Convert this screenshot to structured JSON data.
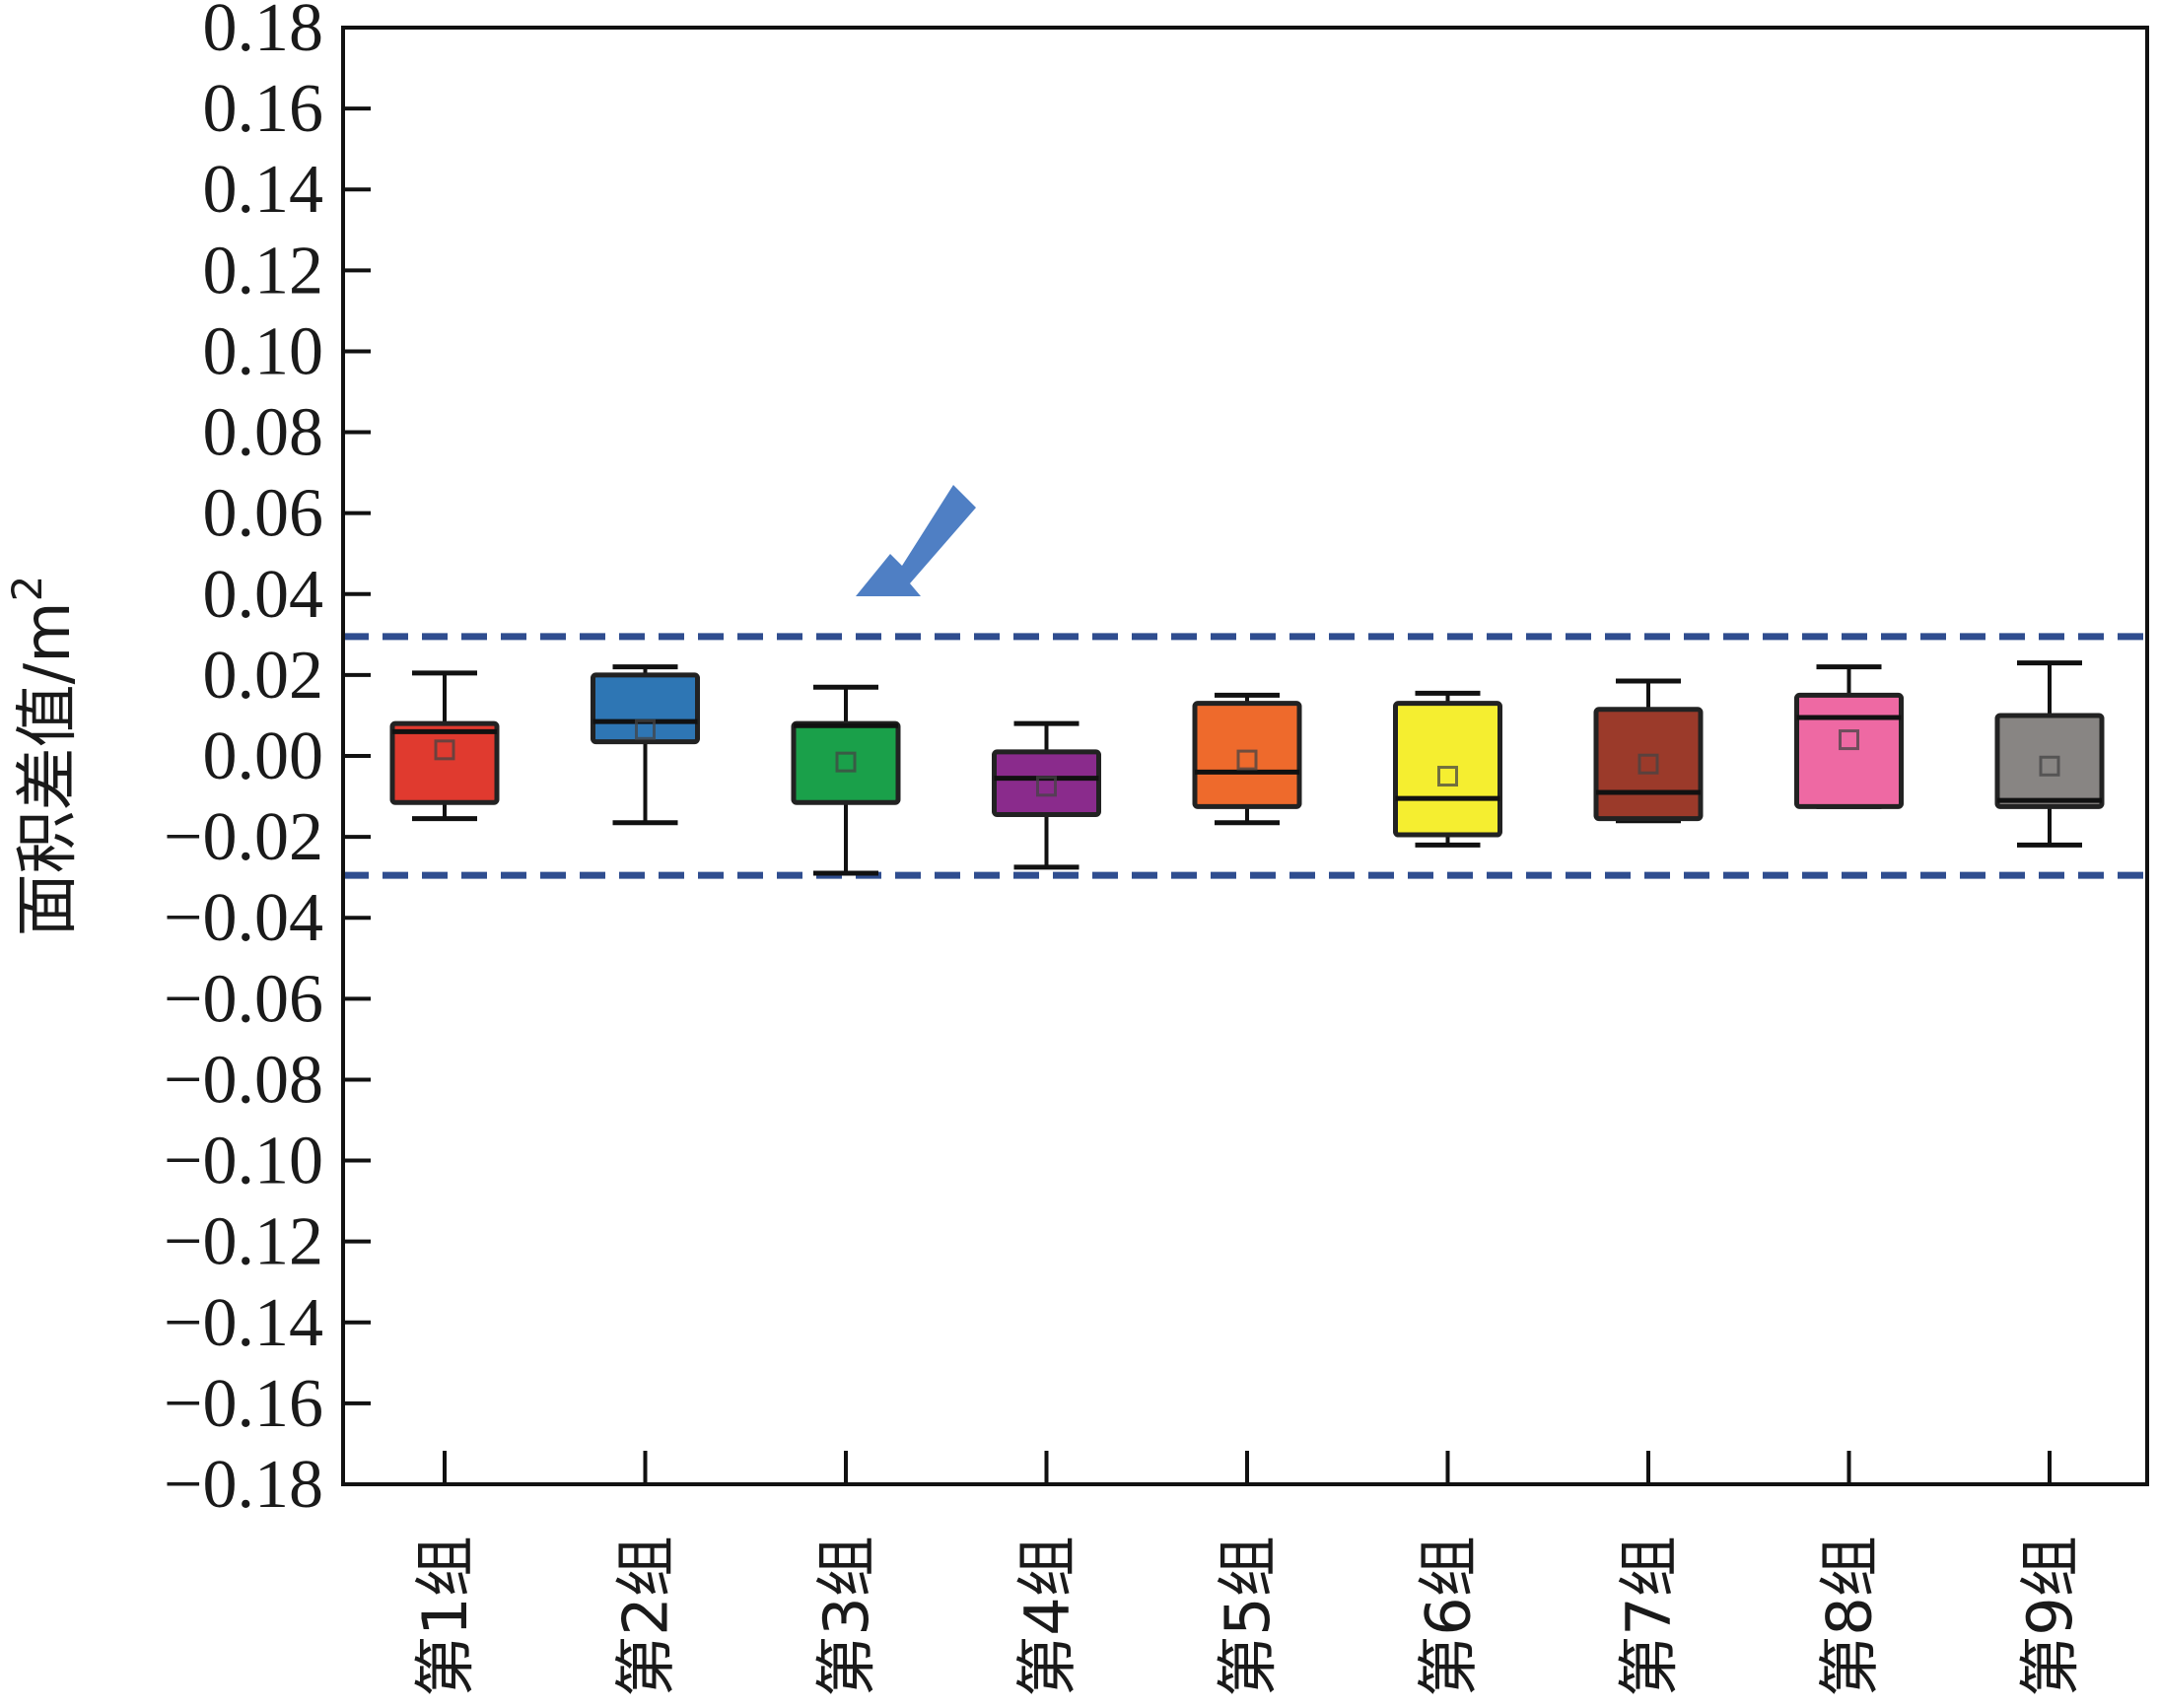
{
  "chart_data": {
    "type": "box",
    "ylabel": "面积差值/m",
    "ylabel_superscript": "2",
    "ylim": [
      -0.18,
      0.18
    ],
    "yticks": [
      "0.18",
      "0.16",
      "0.14",
      "0.12",
      "0.10",
      "0.08",
      "0.06",
      "0.04",
      "0.02",
      "0.00",
      "−0.02",
      "−0.04",
      "−0.06",
      "−0.08",
      "−0.10",
      "−0.12",
      "−0.14",
      "−0.16",
      "−0.18"
    ],
    "ytick_values": [
      0.18,
      0.16,
      0.14,
      0.12,
      0.1,
      0.08,
      0.06,
      0.04,
      0.02,
      0.0,
      -0.02,
      -0.04,
      -0.06,
      -0.08,
      -0.1,
      -0.12,
      -0.14,
      -0.16,
      -0.18
    ],
    "categories": [
      "第1组",
      "第2组",
      "第3组",
      "第4组",
      "第5组",
      "第6组",
      "第7组",
      "第8组",
      "第9组"
    ],
    "boxes": [
      {
        "min": -0.0155,
        "q1": -0.0115,
        "median": 0.006,
        "q3": 0.008,
        "max": 0.0205,
        "mean": 0.0015,
        "color": "#e03a2f"
      },
      {
        "min": -0.0165,
        "q1": 0.0035,
        "median": 0.0085,
        "q3": 0.02,
        "max": 0.022,
        "mean": 0.0065,
        "color": "#2e76b4"
      },
      {
        "min": -0.029,
        "q1": -0.0115,
        "median": 0.0075,
        "q3": 0.008,
        "max": 0.017,
        "mean": -0.0015,
        "color": "#1aa04a"
      },
      {
        "min": -0.0275,
        "q1": -0.0145,
        "median": -0.0055,
        "q3": 0.001,
        "max": 0.008,
        "mean": -0.0075,
        "color": "#8a2b8c"
      },
      {
        "min": -0.0165,
        "q1": -0.0125,
        "median": -0.004,
        "q3": 0.013,
        "max": 0.015,
        "mean": -0.001,
        "color": "#ee6a2c"
      },
      {
        "min": -0.022,
        "q1": -0.0195,
        "median": -0.0105,
        "q3": 0.013,
        "max": 0.0155,
        "mean": -0.005,
        "color": "#f5ee30"
      },
      {
        "min": -0.016,
        "q1": -0.0155,
        "median": -0.009,
        "q3": 0.0115,
        "max": 0.0185,
        "mean": -0.002,
        "color": "#9b3a2a"
      },
      {
        "min": -0.0125,
        "q1": -0.0125,
        "median": 0.0095,
        "q3": 0.015,
        "max": 0.022,
        "mean": 0.004,
        "color": "#ee69a3"
      },
      {
        "min": -0.022,
        "q1": -0.0125,
        "median": -0.011,
        "q3": 0.01,
        "max": 0.023,
        "mean": -0.0025,
        "color": "#888583"
      }
    ],
    "reference_lines": [
      {
        "value": 0.0295,
        "style": "dashed",
        "color": "#2f4d8f"
      },
      {
        "value": -0.0295,
        "style": "dashed",
        "color": "#2f4d8f"
      }
    ],
    "arrow_color": "#4f7fc4",
    "grid": false
  }
}
